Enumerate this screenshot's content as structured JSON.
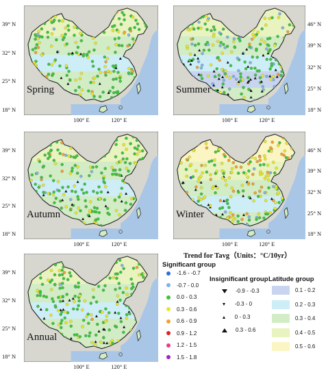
{
  "panels": [
    {
      "name": "spring",
      "label": "Spring",
      "lat_ticks": [
        "39° N",
        "32° N",
        "25° N",
        "18° N"
      ],
      "lat_side": "left",
      "lon_ticks": [
        "100° E",
        "120° E"
      ]
    },
    {
      "name": "summer",
      "label": "Summer",
      "lat_ticks": [
        "46° N",
        "39° N",
        "32° N",
        "25° N",
        "18° N"
      ],
      "lat_side": "right",
      "lon_ticks": [
        "100° E",
        "120° E"
      ]
    },
    {
      "name": "autumn",
      "label": "Autumn",
      "lat_ticks": [
        "39° N",
        "32° N",
        "25° N",
        "18° N"
      ],
      "lat_side": "left",
      "lon_ticks": [
        "100° E",
        "120° E"
      ]
    },
    {
      "name": "winter",
      "label": "Winter",
      "lat_ticks": [
        "46° N",
        "39° N",
        "32° N",
        "25° N",
        "18° N"
      ],
      "lat_side": "right",
      "lon_ticks": [
        "100° E",
        "120° E"
      ]
    },
    {
      "name": "annual",
      "label": "Annual",
      "lat_ticks": [
        "39° N",
        "32° N",
        "25° N",
        "18° N"
      ],
      "lat_side": "left",
      "lon_ticks": [
        "100° E",
        "120° E"
      ]
    }
  ],
  "legend": {
    "title": "Trend for Tavg（Units：°C/10yr）",
    "significant": {
      "heading": "Significant group",
      "items": [
        {
          "label": "-1.6 - -0.7",
          "color": "#2a6fdb"
        },
        {
          "label": "-0.7 - 0.0",
          "color": "#7fb2e5"
        },
        {
          "label": "0.0 - 0.3",
          "color": "#3cc43c"
        },
        {
          "label": "0.3 - 0.6",
          "color": "#e5e82a"
        },
        {
          "label": "0.6 - 0.9",
          "color": "#f0a030"
        },
        {
          "label": "0.9 - 1.2",
          "color": "#e02020"
        },
        {
          "label": "1.2 - 1.5",
          "color": "#e83c8c"
        },
        {
          "label": "1.5 - 1.8",
          "color": "#a020c8"
        }
      ]
    },
    "insignificant": {
      "heading": "Insignificant group",
      "items": [
        {
          "label": "-0.9 - -0.3",
          "marker": "down-large"
        },
        {
          "label": "-0.3 - 0",
          "marker": "down-small"
        },
        {
          "label": "0 - 0.3",
          "marker": "up-small"
        },
        {
          "label": "0.3 - 0.6",
          "marker": "up-large"
        }
      ]
    },
    "latitude": {
      "heading": "Latitude group",
      "items": [
        {
          "label": "0.1 - 0.2",
          "color": "#c9d4ee"
        },
        {
          "label": "0.2 - 0.3",
          "color": "#cdeef7"
        },
        {
          "label": "0.3 - 0.4",
          "color": "#d2ecc6"
        },
        {
          "label": "0.4 - 0.5",
          "color": "#e9f3c0"
        },
        {
          "label": "0.5 - 0.6",
          "color": "#fbf5c4"
        }
      ]
    }
  },
  "colors": {
    "sea": "#a9c6e6",
    "land_bg": "#d7d7d0",
    "border": "#222222"
  }
}
